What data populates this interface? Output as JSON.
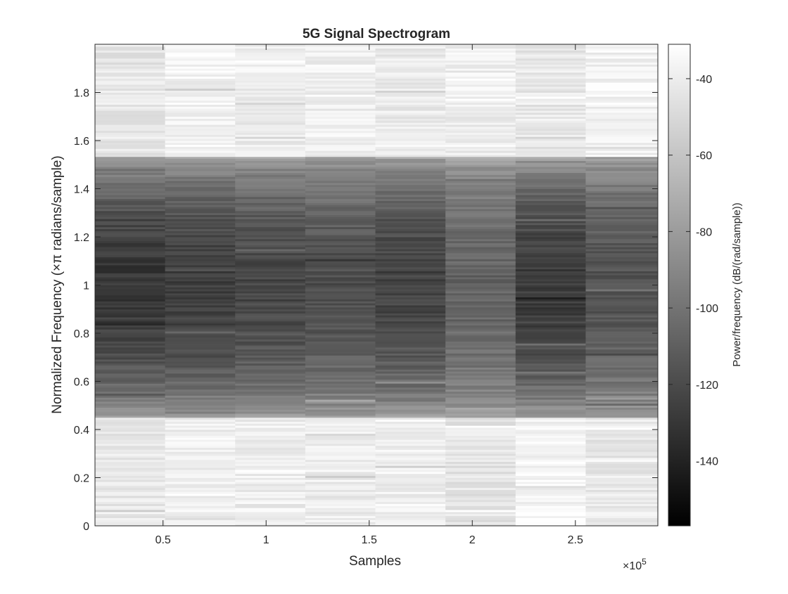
{
  "chart_data": {
    "type": "heatmap",
    "title": "5G Signal Spectrogram",
    "xlabel": "Samples",
    "ylabel": "Normalized Frequency (×π radians/sample)",
    "x_exponent_label": "×10",
    "x_exponent_power": "5",
    "xlim": [
      0.17,
      2.9
    ],
    "ylim": [
      0,
      2
    ],
    "x_ticks": [
      0.5,
      1,
      1.5,
      2,
      2.5
    ],
    "x_tick_labels": [
      "0.5",
      "1",
      "1.5",
      "2",
      "2.5"
    ],
    "y_ticks": [
      0,
      0.2,
      0.4,
      0.6,
      0.8,
      1,
      1.2,
      1.4,
      1.6,
      1.8
    ],
    "y_tick_labels": [
      "0",
      "0.2",
      "0.4",
      "0.6",
      "0.8",
      "1",
      "1.2",
      "1.4",
      "1.6",
      "1.8"
    ],
    "colormap": "gray",
    "grid": false,
    "colorbar": {
      "label": "Power/frequency (dB/(rad/sample))",
      "clim": [
        -157,
        -31
      ],
      "ticks": [
        -40,
        -60,
        -80,
        -100,
        -120,
        -140
      ],
      "tick_labels": [
        "-40",
        "-60",
        "-80",
        "-100",
        "-120",
        "-140"
      ]
    },
    "time_segments": [
      {
        "x_start": 0.17,
        "x_end": 0.51,
        "low_band_db": -42,
        "mid_band_db": -130,
        "high_band_db": -43
      },
      {
        "x_start": 0.51,
        "x_end": 0.85,
        "low_band_db": -38,
        "mid_band_db": -126,
        "high_band_db": -37
      },
      {
        "x_start": 0.85,
        "x_end": 1.19,
        "low_band_db": -40,
        "mid_band_db": -122,
        "high_band_db": -40
      },
      {
        "x_start": 1.19,
        "x_end": 1.53,
        "low_band_db": -40,
        "mid_band_db": -118,
        "high_band_db": -38
      },
      {
        "x_start": 1.53,
        "x_end": 1.87,
        "low_band_db": -39,
        "mid_band_db": -124,
        "high_band_db": -41
      },
      {
        "x_start": 1.87,
        "x_end": 2.21,
        "low_band_db": -44,
        "mid_band_db": -108,
        "high_band_db": -39
      },
      {
        "x_start": 2.21,
        "x_end": 2.55,
        "low_band_db": -36,
        "mid_band_db": -128,
        "high_band_db": -42
      },
      {
        "x_start": 2.55,
        "x_end": 2.9,
        "low_band_db": -42,
        "mid_band_db": -116,
        "high_band_db": -37
      }
    ],
    "band_edges": {
      "low": 0.45,
      "high": 1.53
    }
  }
}
